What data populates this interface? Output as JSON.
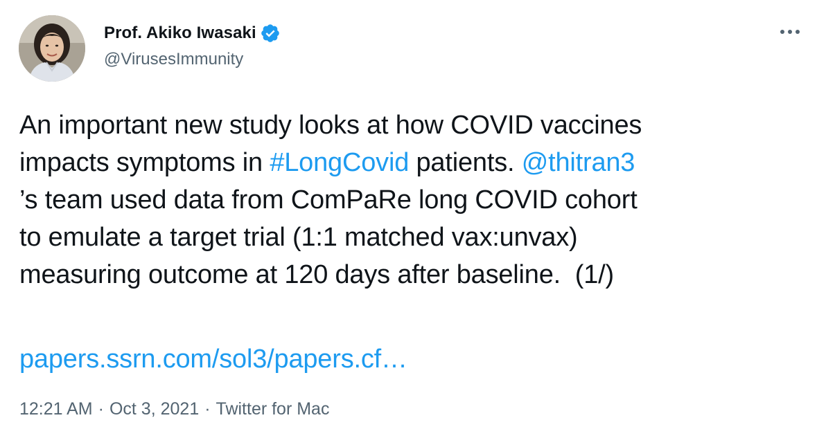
{
  "author": {
    "display_name": "Prof. Akiko Iwasaki",
    "handle": "@VirusesImmunity",
    "verified": true,
    "avatar_icon": "avatar-photo"
  },
  "tweet": {
    "line1": "An important new study looks at how COVID vaccines",
    "line2_pre": "impacts symptoms in ",
    "hashtag": "#LongCovid",
    "line2_mid": " patients. ",
    "mention": "@thitran3",
    "line3": "’s team used data from ComPaRe long COVID cohort",
    "line4": "to emulate a target trial (1:1 matched vax:unvax)",
    "line5": "measuring outcome at 120 days after baseline.  (1/)",
    "url": "papers.ssrn.com/sol3/papers.cf…"
  },
  "meta": {
    "time": "12:21 AM",
    "separator": "·",
    "date": "Oct 3, 2021",
    "source": "Twitter for Mac"
  },
  "colors": {
    "link": "#1d9bf0",
    "verified_badge": "#1d9bf0",
    "secondary_text": "#536471",
    "primary_text": "#0f1419"
  },
  "icons": {
    "verified": "verified-badge-icon",
    "more": "more-options-icon"
  }
}
